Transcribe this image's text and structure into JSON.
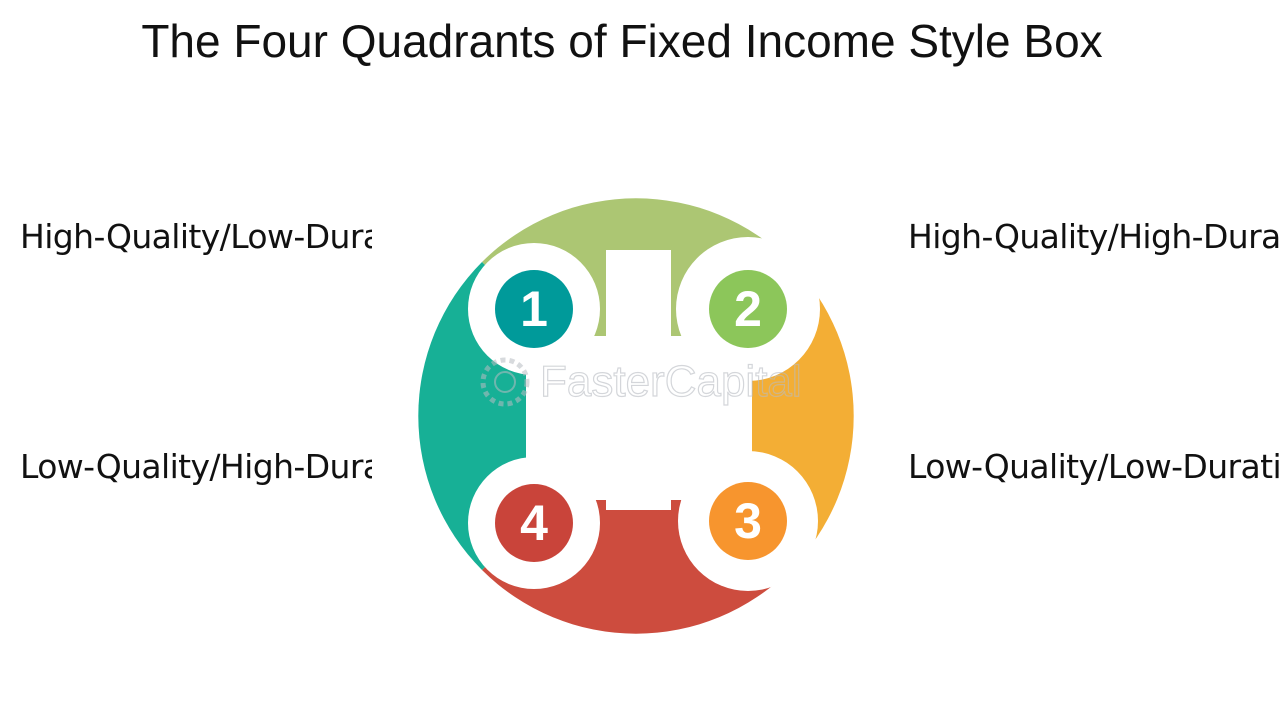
{
  "title": "The Four Quadrants of Fixed Income Style Box",
  "watermark": "FasterCapital",
  "quadrants": [
    {
      "number": "1",
      "label": "High-Quality/Low-Duration",
      "color": "#17b096",
      "badge_color": "#009a9a"
    },
    {
      "number": "2",
      "label": "High-Quality/High-Duration",
      "color": "#acc673",
      "badge_color": "#8cc65a"
    },
    {
      "number": "3",
      "label": "Low-Quality/Low-Duration",
      "color": "#f3ae35",
      "badge_color": "#f7952e"
    },
    {
      "number": "4",
      "label": "Low-Quality/High-Duration",
      "color": "#cd4c3e",
      "badge_color": "#c9443a"
    }
  ]
}
